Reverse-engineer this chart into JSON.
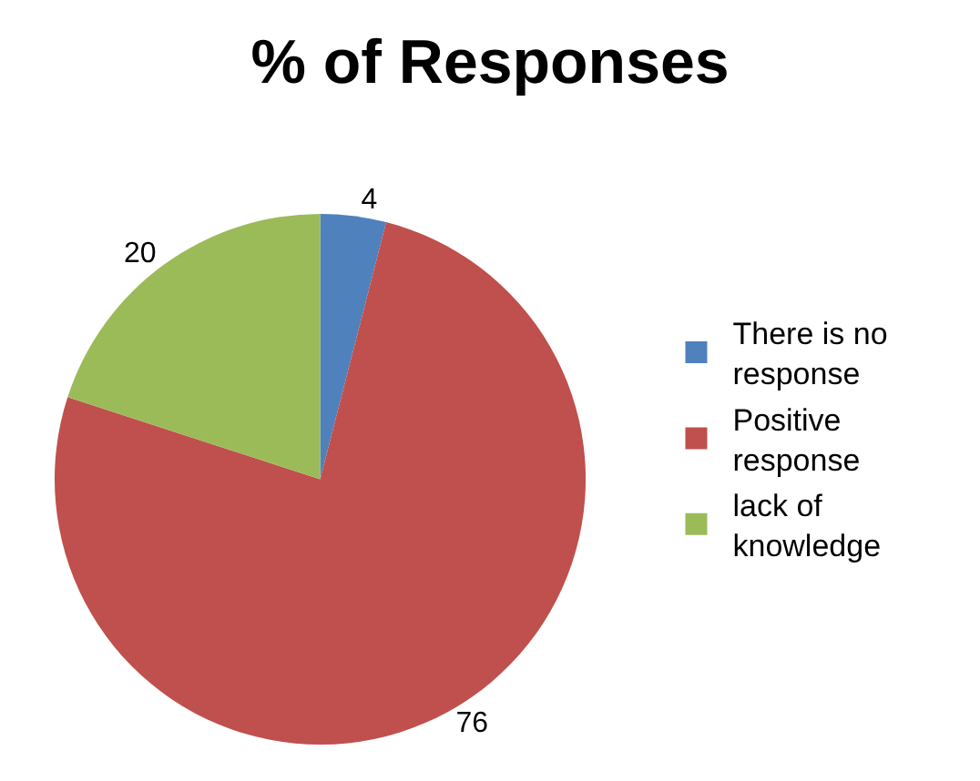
{
  "chart_data": {
    "type": "pie",
    "title": "% of Responses",
    "categories": [
      "There is no response",
      "Positive response",
      "lack of knowledge"
    ],
    "values": [
      4,
      76,
      20
    ],
    "colors": [
      "#4f81bd",
      "#c0504d",
      "#9bbb59"
    ],
    "data_labels": true,
    "legend": "right"
  }
}
